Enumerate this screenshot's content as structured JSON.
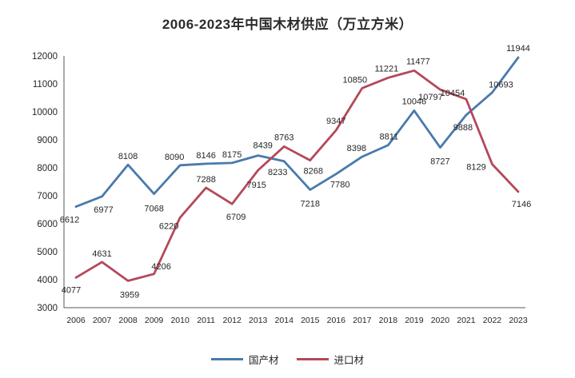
{
  "title": "2006-2023年中国木材供应（万立方米）",
  "colors": {
    "domestic_series": "#4a7aab",
    "imported_series": "#b4485a",
    "axis_line": "#595959",
    "tick_text": "#262626",
    "label_text": "#262626",
    "background": "#ffffff"
  },
  "chart_data": {
    "type": "line",
    "title": "2006-2023年中国木材供应（万立方米）",
    "xlabel": "",
    "ylabel": "",
    "categories": [
      "2006",
      "2007",
      "2008",
      "2009",
      "2010",
      "2011",
      "2012",
      "2013",
      "2014",
      "2015",
      "2016",
      "2017",
      "2018",
      "2019",
      "2020",
      "2021",
      "2022",
      "2023"
    ],
    "series": [
      {
        "name": "国产材",
        "color": "#4a7aab",
        "values": [
          6612,
          6977,
          8108,
          7068,
          8090,
          8146,
          8175,
          8439,
          8233,
          7218,
          7780,
          8398,
          8811,
          10046,
          8727,
          9888,
          10693,
          11944
        ]
      },
      {
        "name": "进口材",
        "color": "#b4485a",
        "values": [
          4077,
          4631,
          3959,
          4206,
          6220,
          7288,
          6709,
          7915,
          8763,
          8268,
          9347,
          10850,
          11221,
          11477,
          10797,
          10454,
          8129,
          7146
        ]
      }
    ],
    "ylim": [
      3000,
      12000
    ],
    "ytick_step": 1000,
    "yticks": [
      3000,
      4000,
      5000,
      6000,
      7000,
      8000,
      9000,
      10000,
      11000,
      12000
    ],
    "grid": false,
    "markers": false,
    "data_labels": true,
    "legend_position": "bottom"
  }
}
